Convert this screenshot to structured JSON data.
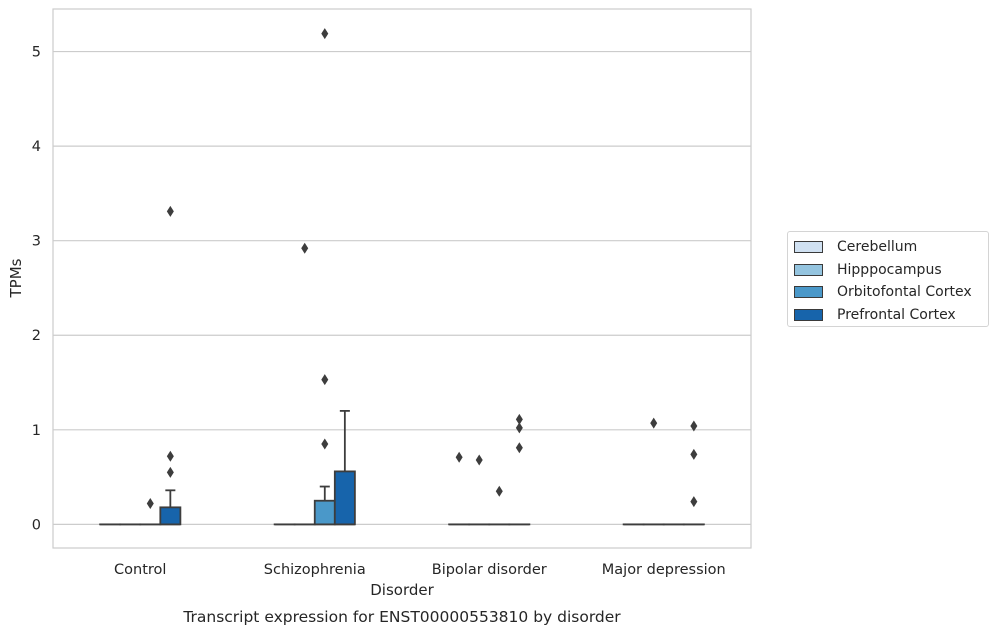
{
  "chart_data": {
    "type": "box",
    "title": "Transcript expression for ENST00000553810 by disorder",
    "xlabel": "Disorder",
    "ylabel": "TPMs",
    "ylim": [
      -0.25,
      5.45
    ],
    "yticks": [
      "0",
      "1",
      "2",
      "3",
      "4",
      "5"
    ],
    "ytick_values": [
      0,
      1,
      2,
      3,
      4,
      5
    ],
    "grid": true,
    "legend_position": "right",
    "categories": [
      "Control",
      "Schizophrenia",
      "Bipolar disorder",
      "Major depression"
    ],
    "series": [
      {
        "name": "Cerebellum",
        "color": "#d0e1f2",
        "boxes": [
          {
            "q1": 0,
            "median": 0,
            "q3": 0,
            "whisker_low": 0,
            "whisker_high": 0,
            "outliers": []
          },
          {
            "q1": 0,
            "median": 0,
            "q3": 0,
            "whisker_low": 0,
            "whisker_high": 0,
            "outliers": []
          },
          {
            "q1": 0,
            "median": 0,
            "q3": 0,
            "whisker_low": 0,
            "whisker_high": 0,
            "outliers": [
              0.71
            ]
          },
          {
            "q1": 0,
            "median": 0,
            "q3": 0,
            "whisker_low": 0,
            "whisker_high": 0,
            "outliers": []
          }
        ]
      },
      {
        "name": "Hipppocampus",
        "color": "#94c4df",
        "boxes": [
          {
            "q1": 0,
            "median": 0,
            "q3": 0,
            "whisker_low": 0,
            "whisker_high": 0,
            "outliers": []
          },
          {
            "q1": 0,
            "median": 0,
            "q3": 0,
            "whisker_low": 0,
            "whisker_high": 0,
            "outliers": [
              2.92
            ]
          },
          {
            "q1": 0,
            "median": 0,
            "q3": 0,
            "whisker_low": 0,
            "whisker_high": 0,
            "outliers": [
              0.68
            ]
          },
          {
            "q1": 0,
            "median": 0,
            "q3": 0,
            "whisker_low": 0,
            "whisker_high": 0,
            "outliers": [
              1.07
            ]
          }
        ]
      },
      {
        "name": "Orbitofontal Cortex",
        "color": "#4a98c9",
        "boxes": [
          {
            "q1": 0,
            "median": 0,
            "q3": 0,
            "whisker_low": 0,
            "whisker_high": 0,
            "outliers": [
              0.22
            ]
          },
          {
            "q1": 0,
            "median": 0,
            "q3": 0.25,
            "whisker_low": 0,
            "whisker_high": 0.4,
            "outliers": [
              0.85,
              1.53,
              5.19
            ]
          },
          {
            "q1": 0,
            "median": 0,
            "q3": 0,
            "whisker_low": 0,
            "whisker_high": 0,
            "outliers": [
              0.35
            ]
          },
          {
            "q1": 0,
            "median": 0,
            "q3": 0,
            "whisker_low": 0,
            "whisker_high": 0,
            "outliers": []
          }
        ]
      },
      {
        "name": "Prefrontal Cortex",
        "color": "#1764ab",
        "boxes": [
          {
            "q1": 0,
            "median": 0,
            "q3": 0.18,
            "whisker_low": 0,
            "whisker_high": 0.36,
            "outliers": [
              0.55,
              0.72,
              3.31
            ]
          },
          {
            "q1": 0,
            "median": 0,
            "q3": 0.56,
            "whisker_low": 0,
            "whisker_high": 1.2,
            "outliers": []
          },
          {
            "q1": 0,
            "median": 0,
            "q3": 0,
            "whisker_low": 0,
            "whisker_high": 0,
            "outliers": [
              0.81,
              1.02,
              1.11
            ]
          },
          {
            "q1": 0,
            "median": 0,
            "q3": 0,
            "whisker_low": 0,
            "whisker_high": 0,
            "outliers": [
              0.24,
              0.74,
              1.04
            ]
          }
        ]
      }
    ]
  }
}
